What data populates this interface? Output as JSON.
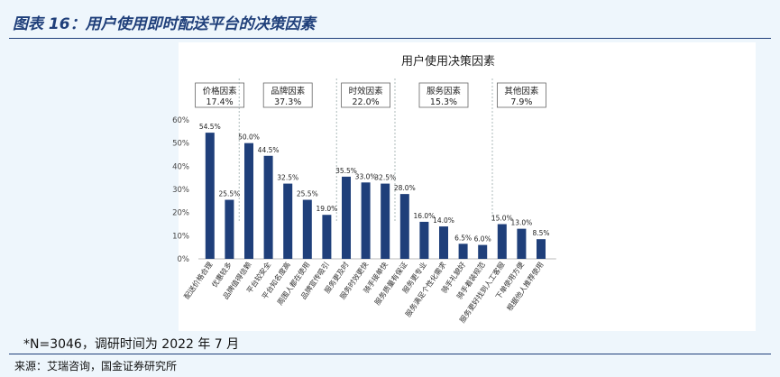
{
  "figure": {
    "title": "图表 16：用户使用即时配送平台的决策因素",
    "note": "*N=3046，调研时间为 2022 年 7 月",
    "source": "来源：艾瑞咨询，国金证券研究所"
  },
  "colors": {
    "bar": "#1f3f7a",
    "title": "#1f3f7a",
    "background": "#eef6fc"
  },
  "chart_data": {
    "type": "bar",
    "title": "用户使用决策因素",
    "ylim": [
      0,
      60
    ],
    "yticks": [
      "0%",
      "10%",
      "20%",
      "30%",
      "40%",
      "50%",
      "60%"
    ],
    "grid": false,
    "groups": [
      {
        "name": "价格因素",
        "value": "17.4%"
      },
      {
        "name": "品牌因素",
        "value": "37.3%"
      },
      {
        "name": "时效因素",
        "value": "22.0%"
      },
      {
        "name": "服务因素",
        "value": "15.3%"
      },
      {
        "name": "其他因素",
        "value": "7.9%"
      }
    ],
    "categories": [
      "配送价格合理",
      "优惠较多",
      "品牌值得信赖",
      "平台较安全",
      "平台知名度高",
      "周围人都在使用",
      "品牌宣传吸引",
      "服务更及时",
      "服务时效更快",
      "骑手接单快",
      "服务质量有保证",
      "服务更专业",
      "服务满足个性化需求",
      "骑手礼貌好",
      "骑手着装规范",
      "服务更好找到人工客服",
      "下单使用方便",
      "根据他人推荐使用"
    ],
    "groupIndex": [
      0,
      0,
      1,
      1,
      1,
      1,
      1,
      2,
      2,
      2,
      3,
      3,
      3,
      3,
      3,
      4,
      4,
      4
    ],
    "values": [
      54.5,
      25.5,
      50.0,
      44.5,
      32.5,
      25.5,
      19.0,
      35.5,
      33.0,
      32.5,
      28.0,
      16.0,
      14.0,
      6.5,
      6.0,
      15.0,
      13.0,
      8.5
    ],
    "labels": [
      "54.5%",
      "25.5%",
      "50.0%",
      "44.5%",
      "32.5%",
      "25.5%",
      "19.0%",
      "35.5%",
      "33.0%",
      "32.5%",
      "28.0%",
      "16.0%",
      "14.0%",
      "6.5%",
      "6.0%",
      "15.0%",
      "13.0%",
      "8.5%"
    ]
  }
}
